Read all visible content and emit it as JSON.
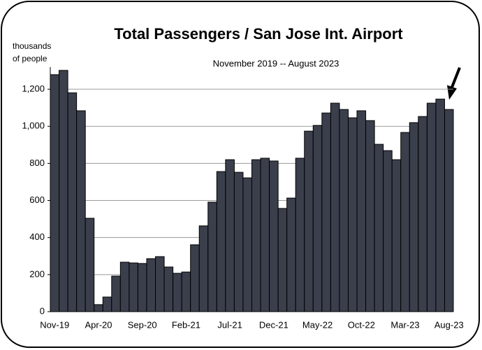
{
  "chart_data": {
    "type": "bar",
    "title": "Total Passengers / San Jose Int. Airport",
    "subtitle": "November 2019 -- August 2023",
    "ylabel_lines": [
      "thousands",
      "of people"
    ],
    "categories": [
      "Nov-19",
      null,
      null,
      null,
      null,
      "Apr-20",
      null,
      null,
      null,
      null,
      "Sep-20",
      null,
      null,
      null,
      null,
      "Feb-21",
      null,
      null,
      null,
      null,
      "Jul-21",
      null,
      null,
      null,
      null,
      "Dec-21",
      null,
      null,
      null,
      null,
      "May-22",
      null,
      null,
      null,
      null,
      "Oct-22",
      null,
      null,
      null,
      null,
      "Mar-23",
      null,
      null,
      null,
      null,
      "Aug-23"
    ],
    "values": [
      1279,
      1302,
      1181,
      1084,
      504,
      38,
      79,
      192,
      267,
      263,
      260,
      286,
      297,
      241,
      207,
      214,
      361,
      463,
      591,
      756,
      820,
      752,
      722,
      820,
      828,
      813,
      557,
      613,
      828,
      974,
      1005,
      1072,
      1125,
      1091,
      1046,
      1084,
      1031,
      903,
      869,
      820,
      967,
      1020,
      1053,
      1125,
      1147,
      1091
    ],
    "color": "#3b3f4c",
    "ylim": [
      0,
      1320
    ],
    "yticks": [
      0,
      200,
      400,
      600,
      800,
      {
        "value": 1000,
        "label": "1,000"
      },
      {
        "value": 1200,
        "label": "1,200"
      }
    ],
    "grid": true
  }
}
